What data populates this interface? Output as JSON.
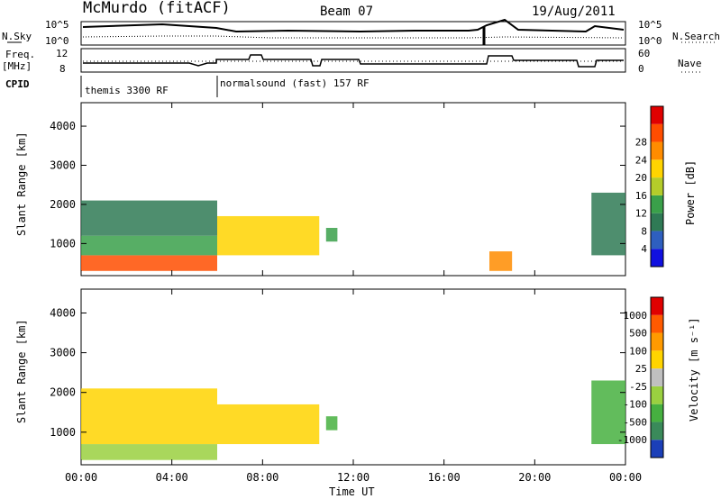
{
  "header": {
    "title": "McMurdo (fitACF)",
    "beam": "Beam 07",
    "date": "19/Aug/2011"
  },
  "status_rows": {
    "nsky_label": "N.Sky",
    "nsky_ticks": [
      "10^5",
      "10^0"
    ],
    "nsearch_label": "N.Search",
    "nsearch_ticks": [
      "10^5",
      "10^0"
    ],
    "freq_label_top": "Freq.",
    "freq_label_bottom": "[MHz]",
    "freq_ticks": [
      "12",
      "8"
    ],
    "nave_label": "Nave",
    "nave_ticks": [
      "60",
      "0"
    ],
    "cpid_label": "CPID",
    "cpid_segments": [
      {
        "label": "themis 3300 RF",
        "start_h": 0,
        "end_h": 6
      },
      {
        "label": "normalsound (fast) 157 RF",
        "start_h": 6,
        "end_h": 24
      }
    ]
  },
  "chart_data": [
    {
      "type": "heatmap",
      "name": "Power",
      "ylabel": "Slant Range [km]",
      "xlabel": "",
      "x_ticks": [
        "00:00",
        "04:00",
        "08:00",
        "12:00",
        "16:00",
        "20:00",
        "00:00"
      ],
      "x_range_hours": [
        0,
        24
      ],
      "y_ticks": [
        1000,
        2000,
        3000,
        4000
      ],
      "ylim": [
        180,
        4600
      ],
      "colorbar": {
        "label": "Power [dB]",
        "ticks": [
          "4",
          "8",
          "12",
          "16",
          "20",
          "24",
          "28"
        ],
        "colors": [
          "#1010e0",
          "#2e5fbf",
          "#2f7a55",
          "#3aa04a",
          "#b4cc2a",
          "#ffd400",
          "#ff8c00",
          "#ff4d00",
          "#e00000"
        ]
      },
      "regions": [
        {
          "t0": 0.0,
          "t1": 6.0,
          "r0": 300,
          "r1": 700,
          "value": 26
        },
        {
          "t0": 0.0,
          "t1": 6.0,
          "r0": 700,
          "r1": 1200,
          "value": 14
        },
        {
          "t0": 0.0,
          "t1": 6.0,
          "r0": 1200,
          "r1": 2100,
          "value": 9
        },
        {
          "t0": 6.0,
          "t1": 10.5,
          "r0": 700,
          "r1": 1700,
          "value": 18
        },
        {
          "t0": 10.8,
          "t1": 11.3,
          "r0": 1050,
          "r1": 1400,
          "value": 14
        },
        {
          "t0": 18.0,
          "t1": 19.0,
          "r0": 300,
          "r1": 800,
          "value": 24
        },
        {
          "t0": 22.5,
          "t1": 24.0,
          "r0": 700,
          "r1": 2300,
          "value": 10
        }
      ]
    },
    {
      "type": "heatmap",
      "name": "Velocity",
      "ylabel": "Slant Range [km]",
      "xlabel": "Time UT",
      "x_ticks": [
        "00:00",
        "04:00",
        "08:00",
        "12:00",
        "16:00",
        "20:00",
        "00:00"
      ],
      "x_range_hours": [
        0,
        24
      ],
      "y_ticks": [
        1000,
        2000,
        3000,
        4000
      ],
      "ylim": [
        180,
        4600
      ],
      "colorbar": {
        "label": "Velocity [m s⁻¹]",
        "ticks": [
          "1000",
          "500",
          "100",
          "25",
          "-25",
          "-100",
          "-500",
          "-1000"
        ],
        "colors": [
          "#1b3fb8",
          "#3a8a5a",
          "#46b040",
          "#9ad040",
          "#c0c0c0",
          "#ffd400",
          "#ff9a00",
          "#ff5a00",
          "#e00000"
        ]
      },
      "regions": [
        {
          "t0": 0.0,
          "t1": 6.0,
          "r0": 300,
          "r1": 700,
          "value": 0
        },
        {
          "t0": 0.0,
          "t1": 6.0,
          "r0": 700,
          "r1": 2100,
          "value": -100
        },
        {
          "t0": 6.0,
          "t1": 10.5,
          "r0": 700,
          "r1": 1700,
          "value": -150
        },
        {
          "t0": 10.8,
          "t1": 11.3,
          "r0": 1050,
          "r1": 1400,
          "value": 100
        },
        {
          "t0": 22.5,
          "t1": 24.0,
          "r0": 700,
          "r1": 2300,
          "value": 100
        }
      ]
    }
  ]
}
